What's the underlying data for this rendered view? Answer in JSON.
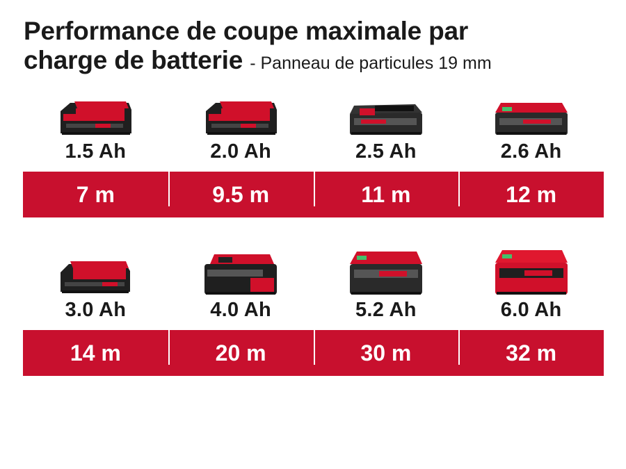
{
  "title": {
    "line1": "Performance de coupe maximale par",
    "line2": "charge de batterie",
    "subtitle": "- Panneau de particules 19 mm"
  },
  "rows": [
    {
      "items": [
        {
          "capacity": "1.5 Ah",
          "value": "7 m",
          "icon": "battery-compact-icon"
        },
        {
          "capacity": "2.0 Ah",
          "value": "9.5 m",
          "icon": "battery-compact-icon"
        },
        {
          "capacity": "2.5 Ah",
          "value": "11 m",
          "icon": "battery-plus-icon"
        },
        {
          "capacity": "2.6 Ah",
          "value": "12 m",
          "icon": "battery-plus-icon"
        }
      ]
    },
    {
      "items": [
        {
          "capacity": "3.0 Ah",
          "value": "14 m",
          "icon": "battery-compact-icon"
        },
        {
          "capacity": "4.0 Ah",
          "value": "20 m",
          "icon": "battery-large-icon"
        },
        {
          "capacity": "5.2 Ah",
          "value": "30 m",
          "icon": "battery-plus-large-icon"
        },
        {
          "capacity": "6.0 Ah",
          "value": "32 m",
          "icon": "battery-plus-large-icon"
        }
      ]
    }
  ],
  "colors": {
    "accent": "#c8102e",
    "battery_body": "#222222",
    "battery_red": "#d0102a",
    "text": "#1a1a1a"
  }
}
